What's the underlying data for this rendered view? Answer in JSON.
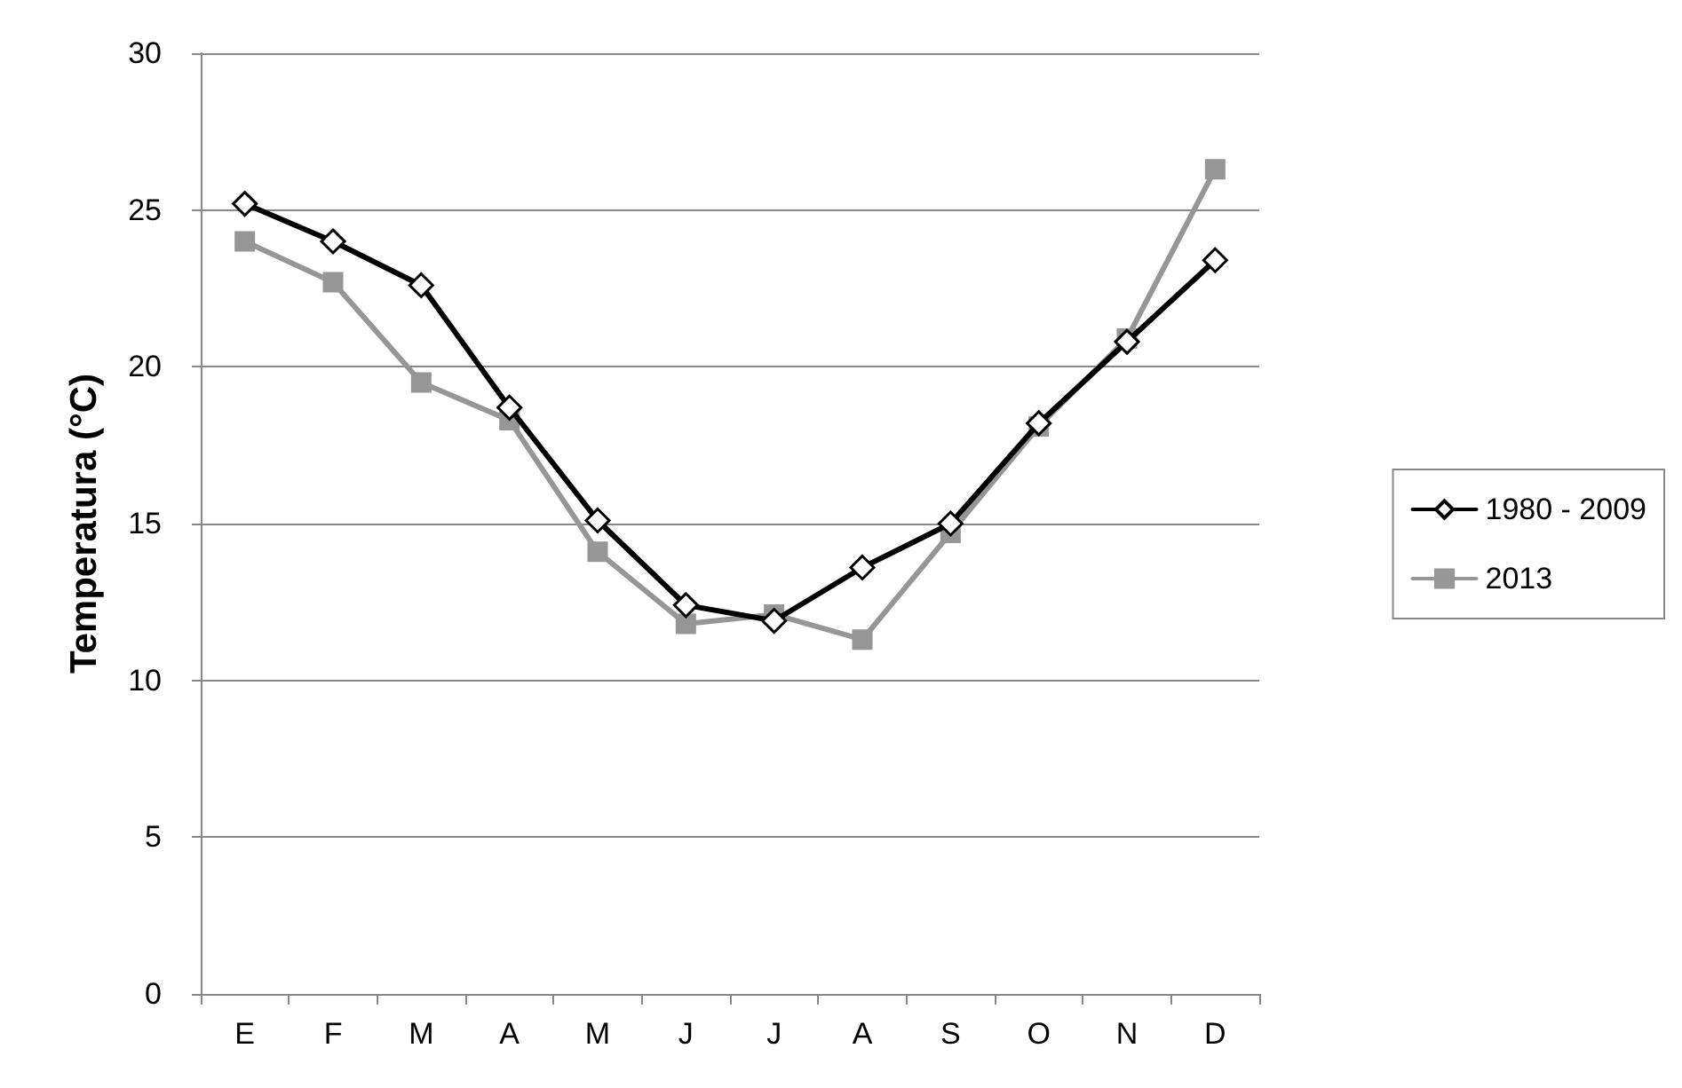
{
  "chart_data": {
    "type": "line",
    "ylabel": "Temperatura (°C)",
    "categories": [
      "E",
      "F",
      "M",
      "A",
      "M",
      "J",
      "J",
      "A",
      "S",
      "O",
      "N",
      "D"
    ],
    "series": [
      {
        "name": "1980 - 2009",
        "color": "#000000",
        "marker": "diamond",
        "values": [
          25.2,
          24.0,
          22.6,
          18.7,
          15.1,
          12.4,
          11.9,
          13.6,
          15.0,
          18.2,
          20.8,
          23.4
        ]
      },
      {
        "name": "2013",
        "color": "#969696",
        "marker": "square",
        "values": [
          24.0,
          22.7,
          19.5,
          18.3,
          14.1,
          11.8,
          12.1,
          11.3,
          14.7,
          18.1,
          20.9,
          26.3
        ]
      }
    ],
    "ylim": [
      0,
      30
    ],
    "yticks": [
      0,
      5,
      10,
      15,
      20,
      25,
      30
    ],
    "grid": "y",
    "legend": "right"
  }
}
